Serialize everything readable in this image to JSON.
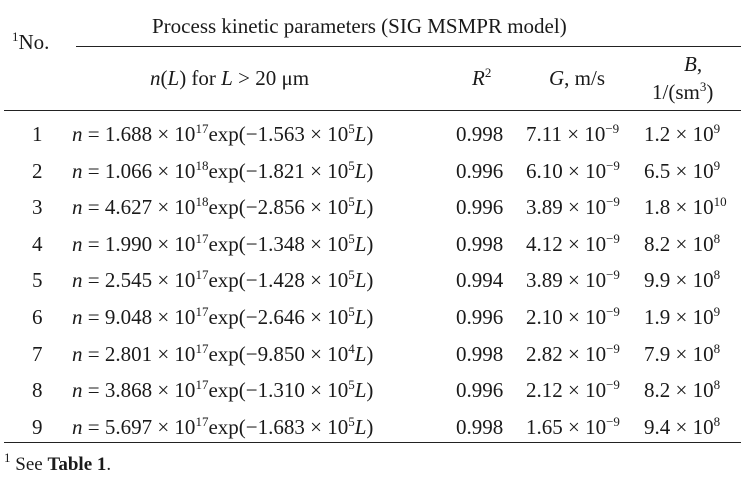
{
  "header": {
    "no_sup": "1",
    "no_label": "No.",
    "group_title": "Process kinetic parameters (SIG MSMPR model)",
    "col_n": "n(L) for L > 20 μm",
    "col_r2": "R",
    "col_r2_sup": "2",
    "col_g": "G, m/s",
    "col_b_line1": "B,",
    "col_b_line2": "1/(sm",
    "col_b_line2_sup": "3",
    "col_b_line2_end": ")"
  },
  "rows": [
    {
      "no": "1",
      "coef": "1.688",
      "coef_exp": "17",
      "rate": "1.563",
      "rate_exp": "5",
      "r2": "0.998",
      "g": "7.11",
      "g_exp": "−9",
      "b": "1.2",
      "b_exp": "9"
    },
    {
      "no": "2",
      "coef": "1.066",
      "coef_exp": "18",
      "rate": "1.821",
      "rate_exp": "5",
      "r2": "0.996",
      "g": "6.10",
      "g_exp": "−9",
      "b": "6.5",
      "b_exp": "9"
    },
    {
      "no": "3",
      "coef": "4.627",
      "coef_exp": "18",
      "rate": "2.856",
      "rate_exp": "5",
      "r2": "0.996",
      "g": "3.89",
      "g_exp": "−9",
      "b": "1.8",
      "b_exp": "10"
    },
    {
      "no": "4",
      "coef": "1.990",
      "coef_exp": "17",
      "rate": "1.348",
      "rate_exp": "5",
      "r2": "0.998",
      "g": "4.12",
      "g_exp": "−9",
      "b": "8.2",
      "b_exp": "8"
    },
    {
      "no": "5",
      "coef": "2.545",
      "coef_exp": "17",
      "rate": "1.428",
      "rate_exp": "5",
      "r2": "0.994",
      "g": "3.89",
      "g_exp": "−9",
      "b": "9.9",
      "b_exp": "8"
    },
    {
      "no": "6",
      "coef": "9.048",
      "coef_exp": "17",
      "rate": "2.646",
      "rate_exp": "5",
      "r2": "0.996",
      "g": "2.10",
      "g_exp": "−9",
      "b": "1.9",
      "b_exp": "9"
    },
    {
      "no": "7",
      "coef": "2.801",
      "coef_exp": "17",
      "rate": "9.850",
      "rate_exp": "4",
      "r2": "0.998",
      "g": "2.82",
      "g_exp": "−9",
      "b": "7.9",
      "b_exp": "8"
    },
    {
      "no": "8",
      "coef": "3.868",
      "coef_exp": "17",
      "rate": "1.310",
      "rate_exp": "5",
      "r2": "0.996",
      "g": "2.12",
      "g_exp": "−9",
      "b": "8.2",
      "b_exp": "8"
    },
    {
      "no": "9",
      "coef": "5.697",
      "coef_exp": "17",
      "rate": "1.683",
      "rate_exp": "5",
      "r2": "0.998",
      "g": "1.65",
      "g_exp": "−9",
      "b": "9.4",
      "b_exp": "8"
    }
  ],
  "footnote": {
    "sup": "1",
    "text": "See ",
    "bold": "Table 1",
    "end": "."
  }
}
